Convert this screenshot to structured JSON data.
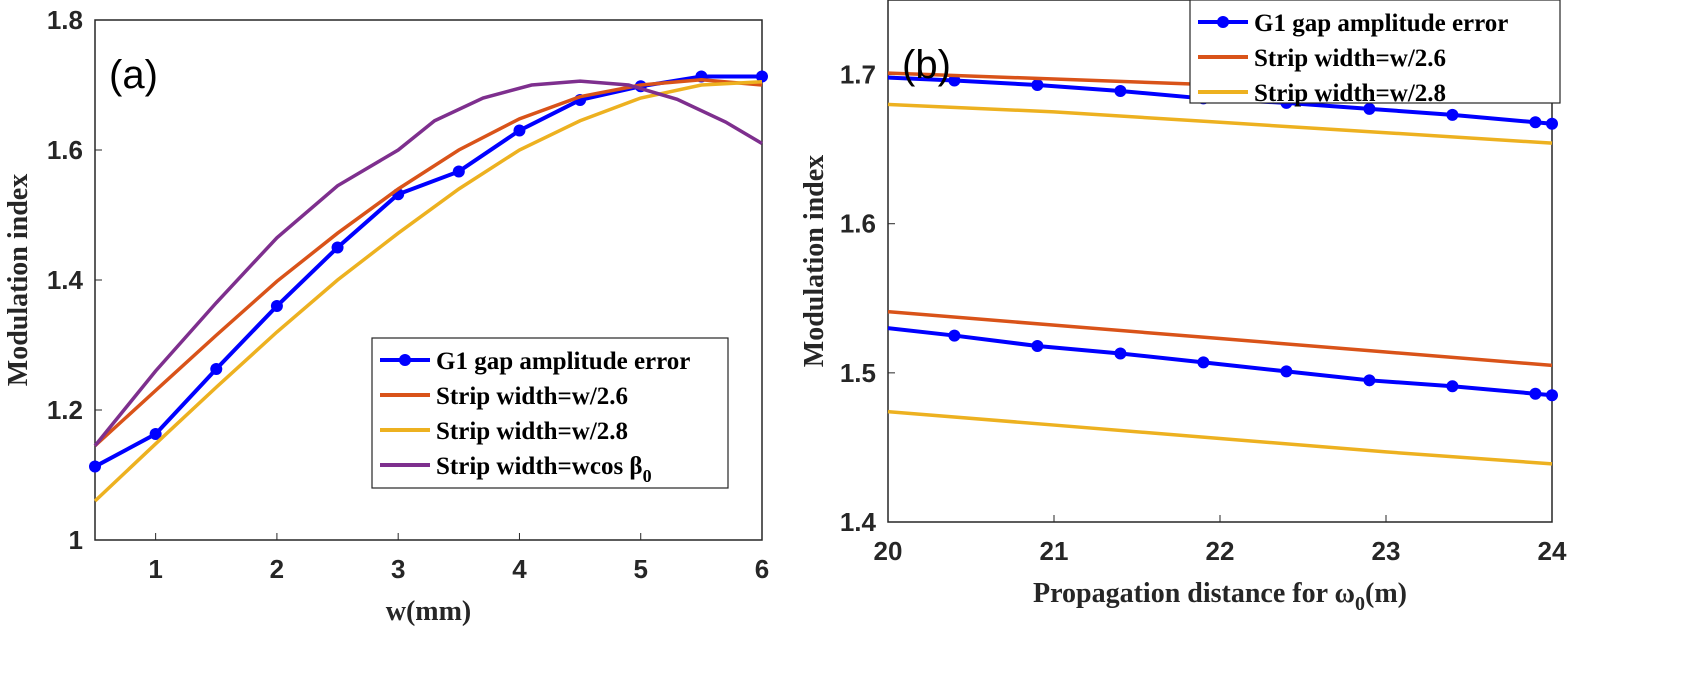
{
  "chart_data": [
    {
      "type": "line",
      "panel_label": "(a)",
      "xlabel": "w(mm)",
      "ylabel": "Modulation index",
      "xlim": [
        0.5,
        6
      ],
      "ylim": [
        1,
        1.8
      ],
      "xticks": [
        "1",
        "2",
        "3",
        "4",
        "5",
        "6"
      ],
      "yticks": [
        "1",
        "1.2",
        "1.4",
        "1.6",
        "1.8"
      ],
      "grid": false,
      "legend_position": "bottom-right",
      "series": [
        {
          "name": "G1 gap amplitude error",
          "color": "#0000ff",
          "markers": true,
          "x": [
            0.5,
            1,
            1.5,
            2,
            2.5,
            3,
            3.5,
            4,
            4.5,
            5,
            5.5,
            6
          ],
          "y": [
            1.113,
            1.163,
            1.263,
            1.36,
            1.45,
            1.532,
            1.567,
            1.63,
            1.677,
            1.698,
            1.713,
            1.713
          ]
        },
        {
          "name": "Strip width=w/2.6",
          "color": "#d95319",
          "markers": false,
          "x": [
            0.5,
            1,
            1.5,
            2,
            2.5,
            3,
            3.5,
            4,
            4.5,
            5,
            5.5,
            6
          ],
          "y": [
            1.145,
            1.23,
            1.315,
            1.398,
            1.472,
            1.54,
            1.6,
            1.648,
            1.682,
            1.7,
            1.708,
            1.7
          ]
        },
        {
          "name": "Strip width=w/2.8",
          "color": "#edb120",
          "markers": false,
          "x": [
            0.5,
            1,
            1.5,
            2,
            2.5,
            3,
            3.5,
            4,
            4.5,
            5,
            5.5,
            6
          ],
          "y": [
            1.06,
            1.148,
            1.235,
            1.32,
            1.4,
            1.472,
            1.54,
            1.6,
            1.645,
            1.68,
            1.7,
            1.705
          ]
        },
        {
          "name": "Strip width=wcos β",
          "name_subscript": "0",
          "color": "#7e2f8e",
          "markers": false,
          "x": [
            0.5,
            1,
            1.5,
            2,
            2.5,
            3,
            3.3,
            3.7,
            4.1,
            4.5,
            4.9,
            5.3,
            5.7,
            6
          ],
          "y": [
            1.145,
            1.26,
            1.365,
            1.465,
            1.545,
            1.6,
            1.645,
            1.68,
            1.7,
            1.706,
            1.7,
            1.678,
            1.643,
            1.61
          ]
        }
      ]
    },
    {
      "type": "line",
      "panel_label": "(b)",
      "xlabel": "Propagation distance for ω",
      "xlabel_subscript": "0",
      "xlabel_suffix": "(m)",
      "ylabel": "Modulation index",
      "xlim": [
        20,
        24
      ],
      "ylim": [
        1.4,
        1.75
      ],
      "xticks": [
        "20",
        "21",
        "22",
        "23",
        "24"
      ],
      "yticks": [
        "1.4",
        "1.5",
        "1.6",
        "1.7"
      ],
      "grid": false,
      "legend_position": "top-right",
      "series": [
        {
          "name": "G1 gap amplitude error",
          "color": "#0000ff",
          "markers": true,
          "x": [
            20,
            20.4,
            20.9,
            21.4,
            21.9,
            22.4,
            22.9,
            23.4,
            23.9,
            24
          ],
          "y": [
            1.698,
            1.696,
            1.693,
            1.689,
            1.684,
            1.681,
            1.677,
            1.673,
            1.668,
            1.667
          ]
        },
        {
          "name": "Strip width=w/2.6",
          "color": "#d95319",
          "markers": false,
          "x": [
            20,
            21,
            22,
            23,
            24
          ],
          "y": [
            1.701,
            1.697,
            1.693,
            1.689,
            1.684
          ]
        },
        {
          "name": "Strip width=w/2.8",
          "color": "#edb120",
          "markers": false,
          "x": [
            20,
            21,
            22,
            23,
            24
          ],
          "y": [
            1.68,
            1.675,
            1.668,
            1.661,
            1.654
          ]
        },
        {
          "legend": false,
          "color": "#0000ff",
          "markers": true,
          "x": [
            20,
            20.4,
            20.9,
            21.4,
            21.9,
            22.4,
            22.9,
            23.4,
            23.9,
            24
          ],
          "y": [
            1.53,
            1.525,
            1.518,
            1.513,
            1.507,
            1.501,
            1.495,
            1.491,
            1.486,
            1.485
          ]
        },
        {
          "legend": false,
          "color": "#d95319",
          "markers": false,
          "x": [
            20,
            21,
            22,
            23,
            24
          ],
          "y": [
            1.541,
            1.532,
            1.523,
            1.514,
            1.505
          ]
        },
        {
          "legend": false,
          "color": "#edb120",
          "markers": false,
          "x": [
            20,
            21,
            22,
            23,
            24
          ],
          "y": [
            1.474,
            1.465,
            1.456,
            1.447,
            1.439
          ]
        }
      ]
    }
  ]
}
